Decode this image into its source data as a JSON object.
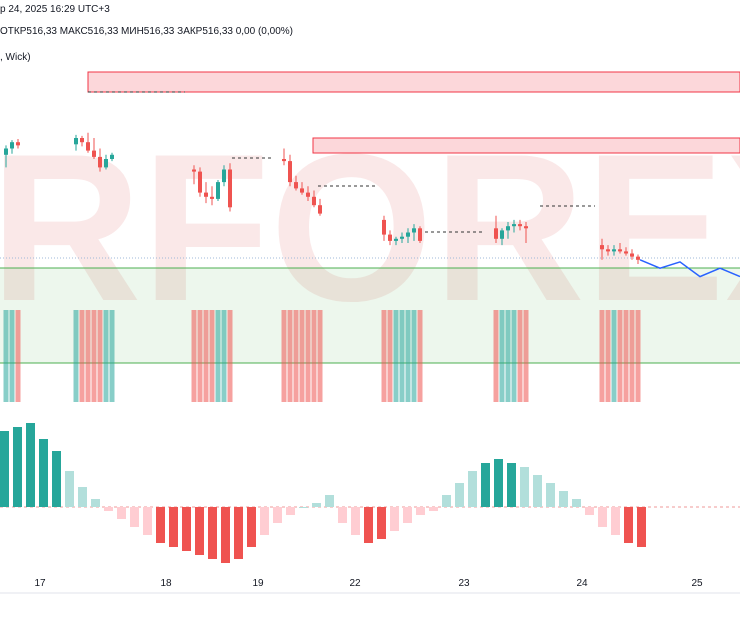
{
  "header": {
    "date_text": "р 24, 2025 16:29 UTC+3",
    "ohlc_text": "ОТКР516,33  МАКС516,33  МИН516,33  ЗАКР516,33  0,00 (0,00%)",
    "indicator_text": ", Wick)"
  },
  "watermark": {
    "text": "RFOREX",
    "color": "#cc1111"
  },
  "colors": {
    "up": "#26a69a",
    "down": "#ef5350",
    "up_light": "#b2dfdb",
    "down_light": "#ffcdd2",
    "forecast": "#2962ff",
    "zone_green": "#4caf50",
    "zone_red": "#f23645"
  },
  "chart_data": {
    "type": "candlestick",
    "x_axis_labels": [
      "17",
      "18",
      "19",
      "22",
      "23",
      "24",
      "25"
    ],
    "price_range": [
      0,
      100
    ],
    "candles": [
      {
        "d": "16",
        "o": 24,
        "h": 33,
        "l": 12,
        "c": 30
      },
      {
        "d": "16",
        "o": 30,
        "h": 38,
        "l": 25,
        "c": 36
      },
      {
        "d": "16",
        "o": 36,
        "h": 39,
        "l": 30,
        "c": 33
      },
      {
        "d": "17",
        "o": 34,
        "h": 43,
        "l": 28,
        "c": 40
      },
      {
        "d": "17",
        "o": 40,
        "h": 42,
        "l": 32,
        "c": 36
      },
      {
        "d": "17",
        "o": 36,
        "h": 45,
        "l": 26,
        "c": 28
      },
      {
        "d": "17",
        "o": 28,
        "h": 40,
        "l": 20,
        "c": 22
      },
      {
        "d": "17",
        "o": 22,
        "h": 30,
        "l": 8,
        "c": 12
      },
      {
        "d": "17",
        "o": 12,
        "h": 24,
        "l": 10,
        "c": 20
      },
      {
        "d": "17",
        "o": 20,
        "h": 26,
        "l": 18,
        "c": 24
      },
      {
        "d": "18",
        "o": 10,
        "h": 14,
        "l": -4,
        "c": 8
      },
      {
        "d": "18",
        "o": 8,
        "h": 12,
        "l": -16,
        "c": -12
      },
      {
        "d": "18",
        "o": -12,
        "h": -2,
        "l": -22,
        "c": -16
      },
      {
        "d": "18",
        "o": -16,
        "h": -6,
        "l": -24,
        "c": -18
      },
      {
        "d": "18",
        "o": -18,
        "h": 0,
        "l": -20,
        "c": -2
      },
      {
        "d": "18",
        "o": -2,
        "h": 14,
        "l": -6,
        "c": 10
      },
      {
        "d": "18",
        "o": 10,
        "h": 16,
        "l": -30,
        "c": -26
      },
      {
        "d": "19",
        "o": 20,
        "h": 30,
        "l": 14,
        "c": 18
      },
      {
        "d": "19",
        "o": 18,
        "h": 24,
        "l": -6,
        "c": -2
      },
      {
        "d": "19",
        "o": -2,
        "h": 4,
        "l": -10,
        "c": -8
      },
      {
        "d": "19",
        "o": -8,
        "h": -2,
        "l": -14,
        "c": -12
      },
      {
        "d": "19",
        "o": -12,
        "h": -6,
        "l": -20,
        "c": -16
      },
      {
        "d": "19",
        "o": -16,
        "h": -10,
        "l": -26,
        "c": -24
      },
      {
        "d": "19",
        "o": -24,
        "h": -18,
        "l": -34,
        "c": -32
      },
      {
        "d": "22",
        "o": -38,
        "h": -34,
        "l": -58,
        "c": -52
      },
      {
        "d": "22",
        "o": -52,
        "h": -48,
        "l": -62,
        "c": -58
      },
      {
        "d": "22",
        "o": -58,
        "h": -54,
        "l": -62,
        "c": -56
      },
      {
        "d": "22",
        "o": -56,
        "h": -50,
        "l": -60,
        "c": -54
      },
      {
        "d": "22",
        "o": -54,
        "h": -46,
        "l": -60,
        "c": -50
      },
      {
        "d": "22",
        "o": -50,
        "h": -42,
        "l": -58,
        "c": -46
      },
      {
        "d": "22",
        "o": -46,
        "h": -44,
        "l": -60,
        "c": -58
      },
      {
        "d": "23",
        "o": -46,
        "h": -34,
        "l": -60,
        "c": -56
      },
      {
        "d": "23",
        "o": -56,
        "h": -46,
        "l": -62,
        "c": -48
      },
      {
        "d": "23",
        "o": -48,
        "h": -40,
        "l": -56,
        "c": -44
      },
      {
        "d": "23",
        "o": -44,
        "h": -38,
        "l": -50,
        "c": -42
      },
      {
        "d": "23",
        "o": -42,
        "h": -38,
        "l": -48,
        "c": -44
      },
      {
        "d": "23",
        "o": -44,
        "h": -40,
        "l": -60,
        "c": -46
      },
      {
        "d": "24",
        "o": -62,
        "h": -56,
        "l": -76,
        "c": -66
      },
      {
        "d": "24",
        "o": -66,
        "h": -62,
        "l": -72,
        "c": -68
      },
      {
        "d": "24",
        "o": -68,
        "h": -62,
        "l": -72,
        "c": -66
      },
      {
        "d": "24",
        "o": -66,
        "h": -60,
        "l": -70,
        "c": -68
      },
      {
        "d": "24",
        "o": -68,
        "h": -64,
        "l": -72,
        "c": -70
      },
      {
        "d": "24",
        "o": -70,
        "h": -66,
        "l": -76,
        "c": -73
      },
      {
        "d": "24",
        "o": -73,
        "h": -71,
        "l": -80,
        "c": -76
      }
    ],
    "forecast_path": [
      [
        -76,
        0
      ],
      [
        -84,
        1
      ],
      [
        -78,
        2
      ],
      [
        -92,
        3
      ],
      [
        -84,
        4
      ],
      [
        -92,
        5
      ]
    ],
    "histogram": [
      38,
      40,
      42,
      34,
      28,
      18,
      10,
      4,
      -2,
      -6,
      -10,
      -14,
      -18,
      -20,
      -22,
      -24,
      -26,
      -28,
      -26,
      -20,
      -14,
      -8,
      -4,
      0,
      2,
      6,
      -8,
      -14,
      -18,
      -16,
      -12,
      -8,
      -4,
      -2,
      6,
      12,
      18,
      22,
      24,
      22,
      20,
      16,
      12,
      8,
      4,
      -4,
      -10,
      -14,
      -18,
      -20
    ]
  }
}
